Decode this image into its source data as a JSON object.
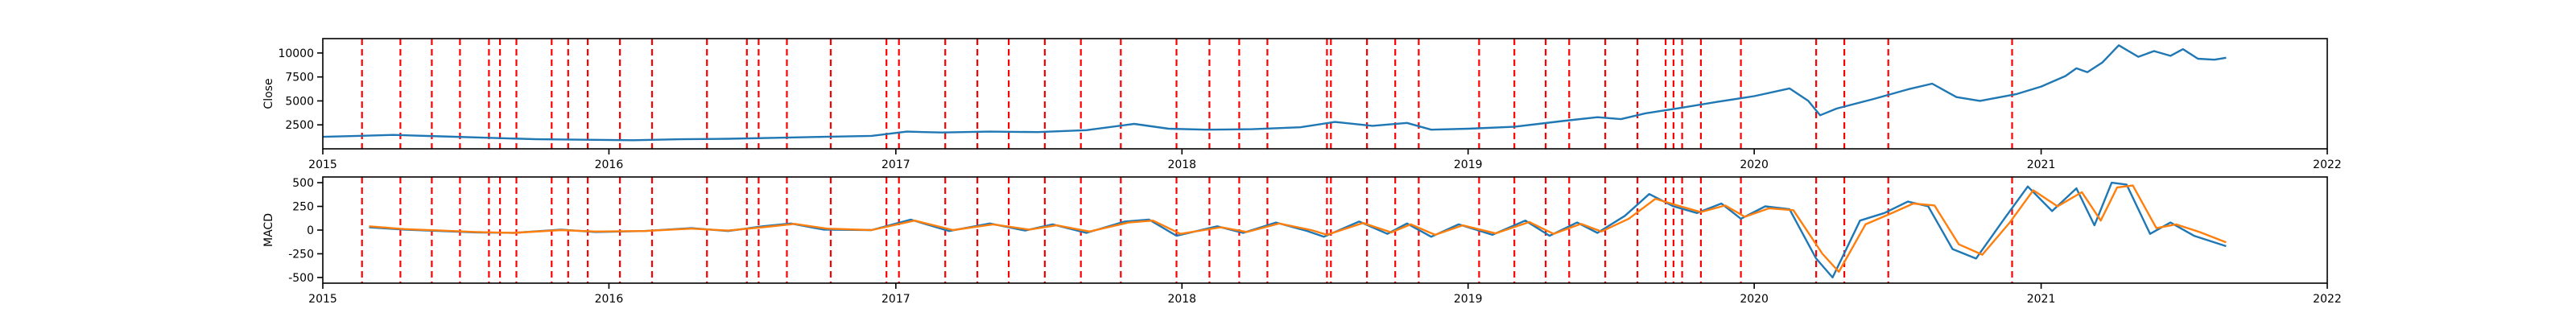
{
  "colors": {
    "close_line": "#1f77b4",
    "macd_line": "#1f77b4",
    "signal_line": "#ff7f0e",
    "event_lines": "#ff0000",
    "axes": "#000000",
    "background": "#ffffff"
  },
  "chart_data": [
    {
      "type": "line",
      "title": "",
      "xlabel": "",
      "ylabel": "Close",
      "xlim": [
        "2015-01-01",
        "2022-01-01"
      ],
      "ylim": [
        0,
        11500
      ],
      "x_ticks": [
        "2015",
        "2016",
        "2017",
        "2018",
        "2019",
        "2020",
        "2021",
        "2022"
      ],
      "y_ticks": [
        2500,
        5000,
        7500,
        10000
      ],
      "grid": false,
      "series": [
        {
          "name": "",
          "color_key": "close_line",
          "points": [
            [
              "2015-01-01",
              1250
            ],
            [
              "2015-02-15",
              1350
            ],
            [
              "2015-04-01",
              1450
            ],
            [
              "2015-06-01",
              1300
            ],
            [
              "2015-08-01",
              1150
            ],
            [
              "2015-10-01",
              1000
            ],
            [
              "2015-12-01",
              950
            ],
            [
              "2016-02-01",
              900
            ],
            [
              "2016-04-01",
              1000
            ],
            [
              "2016-06-01",
              1050
            ],
            [
              "2016-08-01",
              1150
            ],
            [
              "2016-10-01",
              1250
            ],
            [
              "2016-12-01",
              1350
            ],
            [
              "2017-01-15",
              1800
            ],
            [
              "2017-03-01",
              1700
            ],
            [
              "2017-05-01",
              1800
            ],
            [
              "2017-07-01",
              1750
            ],
            [
              "2017-09-01",
              1950
            ],
            [
              "2017-11-01",
              2600
            ],
            [
              "2017-12-15",
              2100
            ],
            [
              "2018-02-01",
              2000
            ],
            [
              "2018-04-01",
              2050
            ],
            [
              "2018-06-01",
              2250
            ],
            [
              "2018-07-15",
              2800
            ],
            [
              "2018-09-01",
              2400
            ],
            [
              "2018-10-15",
              2700
            ],
            [
              "2018-11-15",
              2000
            ],
            [
              "2019-01-01",
              2100
            ],
            [
              "2019-03-01",
              2300
            ],
            [
              "2019-05-01",
              2900
            ],
            [
              "2019-06-15",
              3300
            ],
            [
              "2019-07-15",
              3100
            ],
            [
              "2019-08-15",
              3700
            ],
            [
              "2019-10-01",
              4300
            ],
            [
              "2019-11-15",
              4900
            ],
            [
              "2020-01-01",
              5500
            ],
            [
              "2020-02-15",
              6300
            ],
            [
              "2020-03-10",
              5000
            ],
            [
              "2020-03-25",
              3500
            ],
            [
              "2020-04-15",
              4200
            ],
            [
              "2020-06-01",
              5200
            ],
            [
              "2020-07-15",
              6200
            ],
            [
              "2020-08-15",
              6800
            ],
            [
              "2020-09-15",
              5400
            ],
            [
              "2020-10-15",
              5000
            ],
            [
              "2020-11-30",
              5700
            ],
            [
              "2021-01-01",
              6500
            ],
            [
              "2021-02-01",
              7600
            ],
            [
              "2021-02-15",
              8400
            ],
            [
              "2021-03-01",
              8000
            ],
            [
              "2021-03-20",
              9000
            ],
            [
              "2021-04-10",
              10800
            ],
            [
              "2021-05-05",
              9600
            ],
            [
              "2021-05-25",
              10200
            ],
            [
              "2021-06-15",
              9700
            ],
            [
              "2021-07-01",
              10400
            ],
            [
              "2021-07-20",
              9400
            ],
            [
              "2021-08-10",
              9300
            ],
            [
              "2021-08-25",
              9500
            ]
          ]
        }
      ]
    },
    {
      "type": "line",
      "title": "",
      "xlabel": "",
      "ylabel": "MACD",
      "xlim": [
        "2015-01-01",
        "2022-01-01"
      ],
      "ylim": [
        -560,
        560
      ],
      "x_ticks": [
        "2015",
        "2016",
        "2017",
        "2018",
        "2019",
        "2020",
        "2021",
        "2022"
      ],
      "y_ticks": [
        -500,
        -250,
        0,
        250,
        500
      ],
      "grid": false,
      "series": [
        {
          "name": "",
          "color_key": "macd_line",
          "points": [
            [
              "2015-03-01",
              30
            ],
            [
              "2015-04-15",
              5
            ],
            [
              "2015-06-01",
              -10
            ],
            [
              "2015-07-15",
              -25
            ],
            [
              "2015-09-01",
              -30
            ],
            [
              "2015-11-01",
              5
            ],
            [
              "2015-12-15",
              -20
            ],
            [
              "2016-02-15",
              -10
            ],
            [
              "2016-04-15",
              20
            ],
            [
              "2016-06-01",
              -10
            ],
            [
              "2016-07-15",
              40
            ],
            [
              "2016-08-20",
              70
            ],
            [
              "2016-10-01",
              5
            ],
            [
              "2016-12-01",
              0
            ],
            [
              "2017-01-20",
              110
            ],
            [
              "2017-03-10",
              -10
            ],
            [
              "2017-05-01",
              70
            ],
            [
              "2017-06-15",
              -5
            ],
            [
              "2017-07-20",
              60
            ],
            [
              "2017-09-01",
              -30
            ],
            [
              "2017-10-20",
              90
            ],
            [
              "2017-11-20",
              110
            ],
            [
              "2017-12-25",
              -60
            ],
            [
              "2018-02-15",
              40
            ],
            [
              "2018-03-20",
              -30
            ],
            [
              "2018-05-01",
              80
            ],
            [
              "2018-06-10",
              -10
            ],
            [
              "2018-07-01",
              -70
            ],
            [
              "2018-08-15",
              90
            ],
            [
              "2018-09-20",
              -40
            ],
            [
              "2018-10-15",
              70
            ],
            [
              "2018-11-15",
              -70
            ],
            [
              "2018-12-20",
              60
            ],
            [
              "2019-02-01",
              -50
            ],
            [
              "2019-03-15",
              100
            ],
            [
              "2019-04-15",
              -60
            ],
            [
              "2019-05-20",
              80
            ],
            [
              "2019-06-15",
              -30
            ],
            [
              "2019-07-20",
              150
            ],
            [
              "2019-08-20",
              380
            ],
            [
              "2019-09-20",
              250
            ],
            [
              "2019-10-20",
              180
            ],
            [
              "2019-11-20",
              280
            ],
            [
              "2019-12-15",
              120
            ],
            [
              "2020-01-15",
              250
            ],
            [
              "2020-02-15",
              220
            ],
            [
              "2020-03-20",
              -300
            ],
            [
              "2020-04-10",
              -500
            ],
            [
              "2020-05-15",
              100
            ],
            [
              "2020-06-15",
              180
            ],
            [
              "2020-07-15",
              300
            ],
            [
              "2020-08-10",
              250
            ],
            [
              "2020-09-10",
              -200
            ],
            [
              "2020-10-10",
              -300
            ],
            [
              "2020-11-15",
              120
            ],
            [
              "2020-12-15",
              460
            ],
            [
              "2021-01-15",
              200
            ],
            [
              "2021-02-15",
              440
            ],
            [
              "2021-03-10",
              50
            ],
            [
              "2021-04-01",
              500
            ],
            [
              "2021-04-20",
              480
            ],
            [
              "2021-05-20",
              -40
            ],
            [
              "2021-06-15",
              80
            ],
            [
              "2021-07-15",
              -60
            ],
            [
              "2021-08-25",
              -170
            ]
          ]
        },
        {
          "name": "",
          "color_key": "signal_line",
          "points": [
            [
              "2015-03-01",
              40
            ],
            [
              "2015-04-15",
              10
            ],
            [
              "2015-06-01",
              -5
            ],
            [
              "2015-07-15",
              -20
            ],
            [
              "2015-09-01",
              -30
            ],
            [
              "2015-11-01",
              0
            ],
            [
              "2015-12-15",
              -15
            ],
            [
              "2016-02-15",
              -10
            ],
            [
              "2016-04-15",
              15
            ],
            [
              "2016-06-01",
              -5
            ],
            [
              "2016-07-15",
              30
            ],
            [
              "2016-08-25",
              65
            ],
            [
              "2016-10-05",
              15
            ],
            [
              "2016-12-01",
              0
            ],
            [
              "2017-01-25",
              100
            ],
            [
              "2017-03-15",
              0
            ],
            [
              "2017-05-05",
              60
            ],
            [
              "2017-06-20",
              5
            ],
            [
              "2017-07-25",
              50
            ],
            [
              "2017-09-05",
              -15
            ],
            [
              "2017-10-25",
              80
            ],
            [
              "2017-11-25",
              100
            ],
            [
              "2017-12-30",
              -40
            ],
            [
              "2018-02-20",
              30
            ],
            [
              "2018-03-25",
              -20
            ],
            [
              "2018-05-05",
              70
            ],
            [
              "2018-06-15",
              0
            ],
            [
              "2018-07-05",
              -50
            ],
            [
              "2018-08-20",
              75
            ],
            [
              "2018-09-25",
              -25
            ],
            [
              "2018-10-20",
              60
            ],
            [
              "2018-11-20",
              -50
            ],
            [
              "2018-12-25",
              50
            ],
            [
              "2019-02-05",
              -35
            ],
            [
              "2019-03-20",
              85
            ],
            [
              "2019-04-20",
              -40
            ],
            [
              "2019-05-25",
              65
            ],
            [
              "2019-06-20",
              -15
            ],
            [
              "2019-07-25",
              120
            ],
            [
              "2019-08-28",
              330
            ],
            [
              "2019-09-25",
              260
            ],
            [
              "2019-10-25",
              190
            ],
            [
              "2019-11-25",
              260
            ],
            [
              "2019-12-20",
              140
            ],
            [
              "2020-01-20",
              230
            ],
            [
              "2020-02-20",
              210
            ],
            [
              "2020-03-28",
              -250
            ],
            [
              "2020-04-18",
              -440
            ],
            [
              "2020-05-22",
              60
            ],
            [
              "2020-06-22",
              170
            ],
            [
              "2020-07-22",
              280
            ],
            [
              "2020-08-18",
              260
            ],
            [
              "2020-09-18",
              -150
            ],
            [
              "2020-10-18",
              -260
            ],
            [
              "2020-11-22",
              80
            ],
            [
              "2020-12-22",
              420
            ],
            [
              "2021-01-22",
              250
            ],
            [
              "2021-02-22",
              400
            ],
            [
              "2021-03-18",
              100
            ],
            [
              "2021-04-08",
              450
            ],
            [
              "2021-04-28",
              470
            ],
            [
              "2021-05-28",
              20
            ],
            [
              "2021-06-22",
              60
            ],
            [
              "2021-07-22",
              -20
            ],
            [
              "2021-08-25",
              -130
            ]
          ]
        }
      ]
    }
  ],
  "event_dates": [
    "2015-02-20",
    "2015-04-10",
    "2015-05-20",
    "2015-06-25",
    "2015-08-01",
    "2015-08-15",
    "2015-09-05",
    "2015-10-20",
    "2015-11-10",
    "2015-12-05",
    "2016-01-15",
    "2016-02-25",
    "2016-05-05",
    "2016-06-25",
    "2016-07-10",
    "2016-08-15",
    "2016-10-10",
    "2016-12-20",
    "2017-01-05",
    "2017-03-05",
    "2017-04-15",
    "2017-05-25",
    "2017-07-10",
    "2017-08-25",
    "2017-10-15",
    "2017-12-25",
    "2018-02-05",
    "2018-03-15",
    "2018-04-20",
    "2018-07-05",
    "2018-07-10",
    "2018-08-25",
    "2018-09-30",
    "2018-10-30",
    "2019-01-15",
    "2019-03-01",
    "2019-04-10",
    "2019-05-10",
    "2019-06-25",
    "2019-08-05",
    "2019-09-10",
    "2019-09-20",
    "2019-10-01",
    "2019-10-25",
    "2019-12-15",
    "2020-03-20",
    "2020-04-25",
    "2020-06-20",
    "2020-11-25"
  ]
}
